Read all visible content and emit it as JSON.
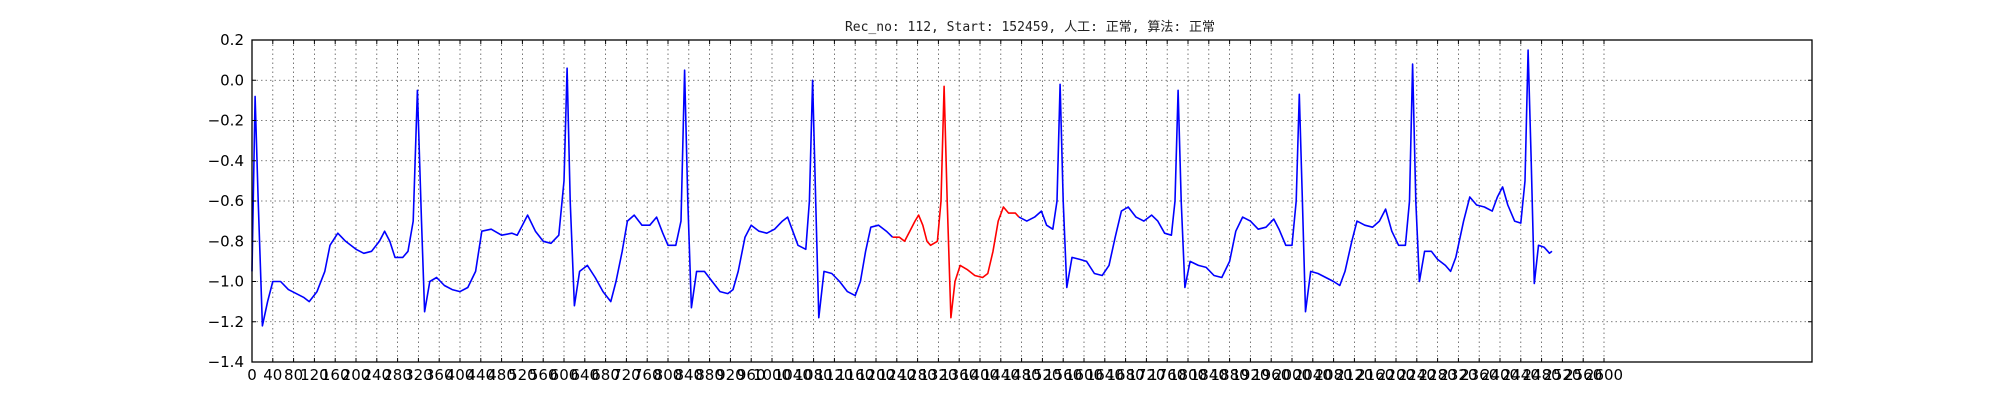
{
  "chart_data": {
    "type": "line",
    "title": "Rec_no: 112, Start: 152459, 人工: 正常, 算法: 正常",
    "xlim": [
      0,
      3000
    ],
    "ylim": [
      -1.4,
      0.2
    ],
    "x_ticks": [
      0,
      40,
      80,
      120,
      160,
      200,
      240,
      280,
      320,
      360,
      400,
      440,
      480,
      520,
      560,
      600,
      640,
      680,
      720,
      760,
      800,
      840,
      880,
      920,
      960,
      1000,
      1040,
      1080,
      1120,
      1160,
      1200,
      1240,
      1280,
      1320,
      1360,
      1400,
      1440,
      1480,
      1520,
      1560,
      1600,
      1640,
      1680,
      1720,
      1760,
      1800,
      1840,
      1880,
      1920,
      1960,
      2000,
      2040,
      2080,
      2120,
      2160,
      2200,
      2240,
      2280,
      2320,
      2360,
      2400,
      2440,
      2480,
      2520,
      2560,
      2600
    ],
    "x_tick_labels": [
      "0",
      "40",
      "80",
      "120",
      "160",
      "200",
      "240",
      "280",
      "320",
      "360",
      "400",
      "440",
      "480",
      "520",
      "560",
      "600",
      "640",
      "680",
      "720",
      "760",
      "800",
      "840",
      "880",
      "920",
      "960",
      "1000",
      "1040",
      "1080",
      "1120",
      "1160",
      "1200",
      "1240",
      "1280",
      "1320",
      "1360",
      "1400",
      "1440",
      "1480",
      "1520",
      "1560",
      "1600",
      "1640",
      "1680",
      "1720",
      "1760",
      "1800",
      "1840",
      "1880",
      "1920",
      "1960",
      "2000",
      "2040",
      "2080",
      "2120",
      "2160",
      "2200",
      "2240",
      "2280",
      "2320",
      "2360",
      "2400",
      "2440",
      "2480",
      "2520",
      "2560",
      "2600"
    ],
    "y_ticks": [
      0.2,
      0.0,
      -0.2,
      -0.4,
      -0.6,
      -0.8,
      -1.0,
      -1.2,
      -1.4
    ],
    "y_tick_labels": [
      "0.2",
      "0.0",
      "−0.2",
      "−0.4",
      "−0.6",
      "−0.8",
      "−1.0",
      "−1.2",
      "−1.4"
    ],
    "grid": true,
    "series": [
      {
        "color": "#0000ff",
        "points": [
          [
            0,
            -0.95
          ],
          [
            6,
            -0.08
          ],
          [
            12,
            -0.6
          ],
          [
            20,
            -1.22
          ],
          [
            30,
            -1.1
          ],
          [
            40,
            -1.0
          ],
          [
            55,
            -1.0
          ],
          [
            70,
            -1.04
          ],
          [
            85,
            -1.06
          ],
          [
            100,
            -1.08
          ],
          [
            110,
            -1.1
          ],
          [
            125,
            -1.05
          ],
          [
            140,
            -0.95
          ],
          [
            150,
            -0.82
          ],
          [
            165,
            -0.76
          ],
          [
            180,
            -0.8
          ],
          [
            200,
            -0.84
          ],
          [
            215,
            -0.86
          ],
          [
            230,
            -0.85
          ],
          [
            245,
            -0.8
          ],
          [
            255,
            -0.75
          ],
          [
            265,
            -0.8
          ],
          [
            275,
            -0.88
          ],
          [
            290,
            -0.88
          ],
          [
            300,
            -0.85
          ],
          [
            310,
            -0.7
          ],
          [
            318,
            -0.05
          ],
          [
            326,
            -0.7
          ],
          [
            332,
            -1.15
          ],
          [
            342,
            -1.0
          ],
          [
            355,
            -0.98
          ],
          [
            370,
            -1.02
          ],
          [
            385,
            -1.04
          ],
          [
            400,
            -1.05
          ],
          [
            415,
            -1.03
          ],
          [
            430,
            -0.95
          ],
          [
            442,
            -0.75
          ],
          [
            460,
            -0.74
          ],
          [
            480,
            -0.77
          ],
          [
            500,
            -0.76
          ],
          [
            510,
            -0.77
          ],
          [
            520,
            -0.72
          ],
          [
            530,
            -0.67
          ],
          [
            545,
            -0.75
          ],
          [
            560,
            -0.8
          ],
          [
            575,
            -0.81
          ],
          [
            590,
            -0.77
          ],
          [
            600,
            -0.5
          ],
          [
            606,
            0.06
          ],
          [
            612,
            -0.6
          ],
          [
            620,
            -1.12
          ],
          [
            630,
            -0.95
          ],
          [
            645,
            -0.92
          ],
          [
            660,
            -0.98
          ],
          [
            675,
            -1.05
          ],
          [
            690,
            -1.1
          ],
          [
            700,
            -1.0
          ],
          [
            712,
            -0.85
          ],
          [
            722,
            -0.7
          ],
          [
            735,
            -0.67
          ],
          [
            750,
            -0.72
          ],
          [
            765,
            -0.72
          ],
          [
            778,
            -0.68
          ],
          [
            790,
            -0.76
          ],
          [
            800,
            -0.82
          ],
          [
            815,
            -0.82
          ],
          [
            825,
            -0.7
          ],
          [
            832,
            0.05
          ],
          [
            838,
            -0.6
          ],
          [
            845,
            -1.13
          ],
          [
            855,
            -0.95
          ],
          [
            870,
            -0.95
          ],
          [
            885,
            -1.0
          ],
          [
            900,
            -1.05
          ],
          [
            915,
            -1.06
          ],
          [
            925,
            -1.04
          ],
          [
            935,
            -0.95
          ],
          [
            948,
            -0.78
          ],
          [
            960,
            -0.72
          ],
          [
            975,
            -0.75
          ],
          [
            990,
            -0.76
          ],
          [
            1005,
            -0.74
          ],
          [
            1020,
            -0.7
          ],
          [
            1030,
            -0.68
          ],
          [
            1040,
            -0.75
          ],
          [
            1050,
            -0.82
          ],
          [
            1065,
            -0.84
          ],
          [
            1072,
            -0.6
          ],
          [
            1078,
            0.0
          ],
          [
            1084,
            -0.6
          ],
          [
            1090,
            -1.18
          ],
          [
            1100,
            -0.95
          ],
          [
            1115,
            -0.96
          ],
          [
            1130,
            -1.0
          ],
          [
            1145,
            -1.05
          ],
          [
            1160,
            -1.07
          ],
          [
            1170,
            -1.0
          ],
          [
            1180,
            -0.85
          ],
          [
            1190,
            -0.73
          ],
          [
            1205,
            -0.72
          ],
          [
            1220,
            -0.75
          ],
          [
            1232,
            -0.78
          ]
        ]
      },
      {
        "color": "#ff0000",
        "points": [
          [
            1232,
            -0.78
          ],
          [
            1245,
            -0.78
          ],
          [
            1255,
            -0.8
          ],
          [
            1265,
            -0.75
          ],
          [
            1275,
            -0.7
          ],
          [
            1282,
            -0.67
          ],
          [
            1290,
            -0.72
          ],
          [
            1298,
            -0.8
          ],
          [
            1305,
            -0.82
          ],
          [
            1318,
            -0.8
          ],
          [
            1325,
            -0.6
          ],
          [
            1331,
            -0.03
          ],
          [
            1337,
            -0.6
          ],
          [
            1344,
            -1.18
          ],
          [
            1352,
            -1.0
          ],
          [
            1362,
            -0.92
          ],
          [
            1375,
            -0.94
          ],
          [
            1390,
            -0.97
          ],
          [
            1405,
            -0.98
          ],
          [
            1415,
            -0.96
          ],
          [
            1425,
            -0.85
          ],
          [
            1435,
            -0.7
          ],
          [
            1445,
            -0.63
          ],
          [
            1455,
            -0.66
          ],
          [
            1468,
            -0.66
          ],
          [
            1475,
            -0.68
          ]
        ]
      },
      {
        "color": "#0000ff",
        "points": [
          [
            1475,
            -0.68
          ],
          [
            1490,
            -0.7
          ],
          [
            1505,
            -0.68
          ],
          [
            1518,
            -0.65
          ],
          [
            1528,
            -0.72
          ],
          [
            1540,
            -0.74
          ],
          [
            1548,
            -0.6
          ],
          [
            1554,
            -0.02
          ],
          [
            1560,
            -0.6
          ],
          [
            1567,
            -1.03
          ],
          [
            1577,
            -0.88
          ],
          [
            1592,
            -0.89
          ],
          [
            1605,
            -0.9
          ],
          [
            1620,
            -0.96
          ],
          [
            1635,
            -0.97
          ],
          [
            1648,
            -0.92
          ],
          [
            1660,
            -0.78
          ],
          [
            1672,
            -0.65
          ],
          [
            1685,
            -0.63
          ],
          [
            1700,
            -0.68
          ],
          [
            1715,
            -0.7
          ],
          [
            1730,
            -0.67
          ],
          [
            1742,
            -0.7
          ],
          [
            1755,
            -0.76
          ],
          [
            1768,
            -0.77
          ],
          [
            1775,
            -0.6
          ],
          [
            1781,
            -0.05
          ],
          [
            1787,
            -0.6
          ],
          [
            1794,
            -1.03
          ],
          [
            1804,
            -0.9
          ],
          [
            1820,
            -0.92
          ],
          [
            1835,
            -0.93
          ],
          [
            1850,
            -0.97
          ],
          [
            1865,
            -0.98
          ],
          [
            1880,
            -0.9
          ],
          [
            1892,
            -0.75
          ],
          [
            1905,
            -0.68
          ],
          [
            1920,
            -0.7
          ],
          [
            1935,
            -0.74
          ],
          [
            1950,
            -0.73
          ],
          [
            1965,
            -0.69
          ],
          [
            1975,
            -0.74
          ],
          [
            1988,
            -0.82
          ],
          [
            2000,
            -0.82
          ],
          [
            2008,
            -0.6
          ],
          [
            2014,
            -0.07
          ],
          [
            2020,
            -0.6
          ],
          [
            2026,
            -1.15
          ],
          [
            2036,
            -0.95
          ],
          [
            2050,
            -0.96
          ],
          [
            2065,
            -0.98
          ],
          [
            2080,
            -1.0
          ],
          [
            2092,
            -1.02
          ],
          [
            2102,
            -0.95
          ],
          [
            2115,
            -0.8
          ],
          [
            2125,
            -0.7
          ],
          [
            2140,
            -0.72
          ],
          [
            2155,
            -0.73
          ],
          [
            2168,
            -0.7
          ],
          [
            2180,
            -0.64
          ],
          [
            2192,
            -0.75
          ],
          [
            2205,
            -0.82
          ],
          [
            2218,
            -0.82
          ],
          [
            2226,
            -0.6
          ],
          [
            2232,
            0.08
          ],
          [
            2238,
            -0.6
          ],
          [
            2245,
            -1.0
          ],
          [
            2255,
            -0.85
          ],
          [
            2268,
            -0.85
          ],
          [
            2280,
            -0.89
          ],
          [
            2295,
            -0.92
          ],
          [
            2305,
            -0.95
          ],
          [
            2315,
            -0.88
          ],
          [
            2330,
            -0.7
          ],
          [
            2342,
            -0.58
          ],
          [
            2355,
            -0.62
          ],
          [
            2370,
            -0.63
          ],
          [
            2385,
            -0.65
          ],
          [
            2395,
            -0.58
          ],
          [
            2405,
            -0.53
          ],
          [
            2415,
            -0.62
          ],
          [
            2428,
            -0.7
          ],
          [
            2440,
            -0.71
          ],
          [
            2448,
            -0.5
          ],
          [
            2454,
            0.15
          ],
          [
            2460,
            -0.4
          ],
          [
            2466,
            -1.01
          ],
          [
            2474,
            -0.82
          ],
          [
            2485,
            -0.83
          ],
          [
            2492,
            -0.85
          ],
          [
            2495,
            -0.86
          ],
          [
            2500,
            -0.85
          ]
        ]
      }
    ]
  }
}
